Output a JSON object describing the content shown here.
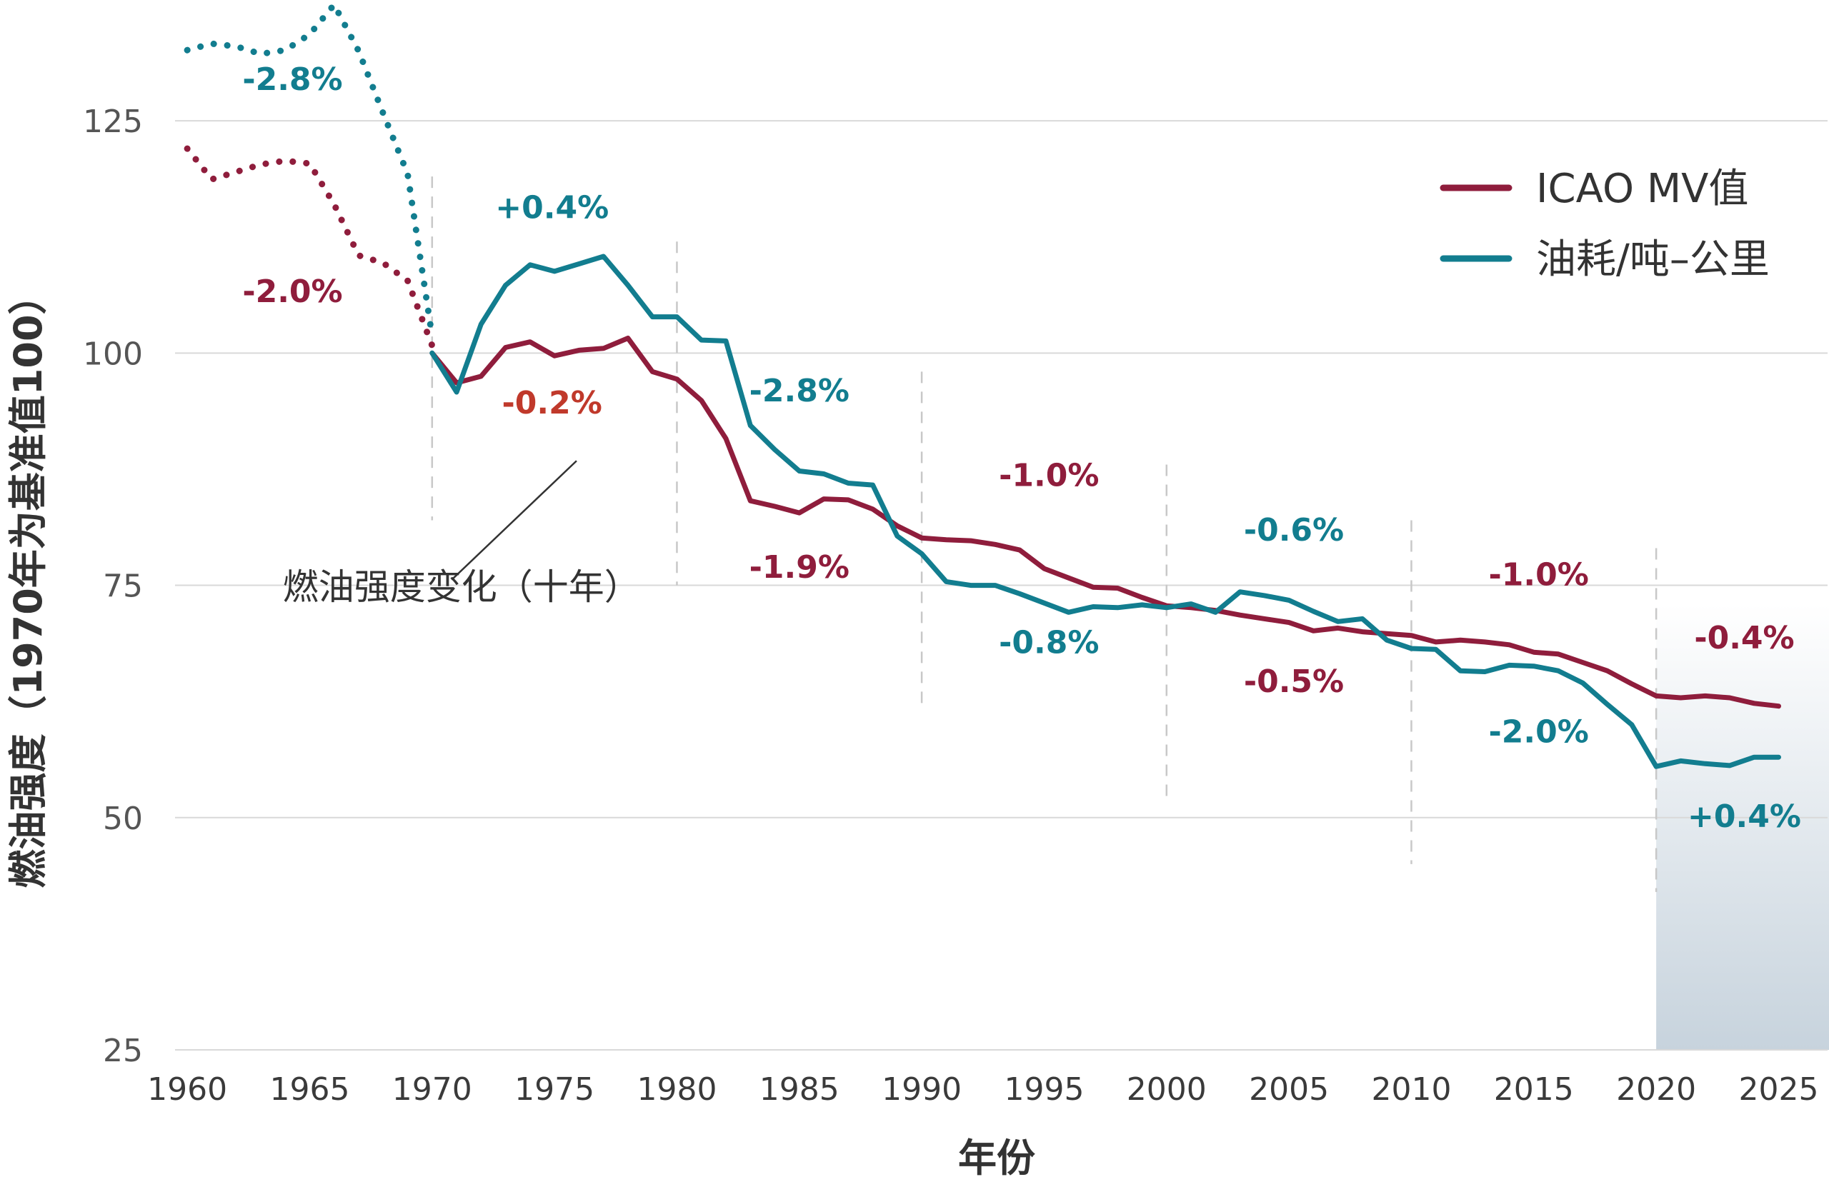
{
  "colors": {
    "mv": "#8f1d3c",
    "fuel": "#127d8f",
    "red_label": "#c0392b",
    "grid": "#d9d9d9",
    "divider": "#c8c8c8",
    "shade_top": "#ffffff",
    "shade_bottom": "#c7d3dd"
  },
  "chart_data": {
    "type": "line",
    "title": "",
    "xlabel": "年份",
    "ylabel": "燃油强度（1970年为基准值100）",
    "xlim": [
      1959.5,
      2027
    ],
    "ylim": [
      25,
      138
    ],
    "x_ticks": [
      "1960",
      "1965",
      "1970",
      "1975",
      "1980",
      "1985",
      "1990",
      "1995",
      "2000",
      "2005",
      "2010",
      "2015",
      "2020",
      "2025"
    ],
    "y_ticks": [
      "25",
      "50",
      "75",
      "100",
      "125"
    ],
    "grid": "horizontal",
    "legend_position": "top-right",
    "decade_dividers": [
      1970,
      1980,
      1990,
      2000,
      2010,
      2020
    ],
    "projection_shade": [
      2020,
      2027
    ],
    "series": [
      {
        "name": "ICAO MV值",
        "dotted": {
          "x": [
            1960,
            1961,
            1962,
            1963,
            1964,
            1965,
            1966,
            1967,
            1968,
            1969,
            1970
          ],
          "y": [
            122,
            118.7,
            119.5,
            120.3,
            120.7,
            120.4,
            116,
            110.5,
            109.7,
            107.8,
            100.8
          ]
        },
        "solid": {
          "x": [
            1970,
            1971,
            1972,
            1973,
            1974,
            1975,
            1976,
            1977,
            1978,
            1979,
            1980,
            1981,
            1982,
            1983,
            1984,
            1985,
            1986,
            1987,
            1988,
            1989,
            1990,
            1991,
            1992,
            1993,
            1994,
            1995,
            1996,
            1997,
            1998,
            1999,
            2000,
            2001,
            2002,
            2003,
            2004,
            2005,
            2006,
            2007,
            2008,
            2009,
            2010,
            2011,
            2012,
            2013,
            2014,
            2015,
            2016,
            2017,
            2018,
            2019,
            2020,
            2021,
            2022,
            2023,
            2024,
            2025
          ],
          "y": [
            100,
            96.8,
            97.5,
            100.6,
            101.2,
            99.7,
            100.3,
            100.5,
            101.6,
            98,
            97.2,
            94.9,
            90.8,
            84.1,
            83.5,
            82.8,
            84.3,
            84.2,
            83.2,
            81.4,
            80.1,
            79.9,
            79.8,
            79.4,
            78.8,
            76.8,
            75.8,
            74.8,
            74.7,
            73.7,
            72.8,
            72.6,
            72.3,
            71.8,
            71.4,
            71,
            70.1,
            70.4,
            70,
            69.8,
            69.6,
            68.9,
            69.1,
            68.9,
            68.6,
            67.8,
            67.6,
            66.7,
            65.8,
            64.4,
            63.1,
            62.9,
            63.1,
            62.9,
            62.3,
            62
          ]
        }
      },
      {
        "name": "油耗/吨–公里",
        "dotted": {
          "x": [
            1960,
            1961,
            1962,
            1963,
            1964,
            1965,
            1966,
            1967,
            1968,
            1969,
            1970
          ],
          "y": [
            132.6,
            133.3,
            133,
            132.2,
            132.6,
            134.3,
            137.5,
            132.5,
            125.8,
            119.3,
            101.8
          ]
        },
        "solid": {
          "x": [
            1970,
            1971,
            1972,
            1973,
            1974,
            1975,
            1976,
            1977,
            1978,
            1979,
            1980,
            1981,
            1982,
            1983,
            1984,
            1985,
            1986,
            1987,
            1988,
            1989,
            1990,
            1991,
            1992,
            1993,
            1994,
            1995,
            1996,
            1997,
            1998,
            1999,
            2000,
            2001,
            2002,
            2003,
            2004,
            2005,
            2006,
            2007,
            2008,
            2009,
            2010,
            2011,
            2012,
            2013,
            2014,
            2015,
            2016,
            2017,
            2018,
            2019,
            2020,
            2021,
            2022,
            2023,
            2024,
            2025
          ],
          "y": [
            100,
            95.8,
            103.1,
            107.3,
            109.5,
            108.8,
            109.6,
            110.4,
            107.3,
            103.9,
            103.9,
            101.4,
            101.3,
            92.2,
            89.6,
            87.3,
            87,
            86,
            85.8,
            80.3,
            78.4,
            75.4,
            75,
            75,
            74.1,
            73.1,
            72.1,
            72.7,
            72.6,
            72.9,
            72.6,
            73,
            72.1,
            74.3,
            73.9,
            73.4,
            72.2,
            71.1,
            71.4,
            69.1,
            68.2,
            68.1,
            65.8,
            65.7,
            66.4,
            66.3,
            65.8,
            64.5,
            62.2,
            60,
            55.5,
            56.1,
            55.8,
            55.6,
            56.5,
            56.5
          ]
        }
      }
    ],
    "decade_changes": [
      {
        "text": "-2.8%",
        "series": "fuel",
        "x": 1964.3,
        "y": 128.3
      },
      {
        "text": "-2.0%",
        "series": "mv",
        "x": 1964.3,
        "y": 105.5
      },
      {
        "text": "+0.4%",
        "series": "fuel",
        "x": 1974.9,
        "y": 114.5
      },
      {
        "text": "-0.2%",
        "series": "red",
        "x": 1974.9,
        "y": 93.5
      },
      {
        "text": "-2.8%",
        "series": "fuel",
        "x": 1985,
        "y": 94.8
      },
      {
        "text": "-1.9%",
        "series": "mv",
        "x": 1985,
        "y": 75.8
      },
      {
        "text": "-1.0%",
        "series": "mv",
        "x": 1995.2,
        "y": 85.7
      },
      {
        "text": "-0.8%",
        "series": "fuel",
        "x": 1995.2,
        "y": 67.7
      },
      {
        "text": "-0.6%",
        "series": "fuel",
        "x": 2005.2,
        "y": 79.8
      },
      {
        "text": "-0.5%",
        "series": "mv",
        "x": 2005.2,
        "y": 63.5
      },
      {
        "text": "-1.0%",
        "series": "mv",
        "x": 2015.2,
        "y": 75
      },
      {
        "text": "-2.0%",
        "series": "fuel",
        "x": 2015.2,
        "y": 58.1
      },
      {
        "text": "-0.4%",
        "series": "mv",
        "x": 2023.6,
        "y": 68.2
      },
      {
        "text": "+0.4%",
        "series": "fuel",
        "x": 2023.6,
        "y": 49
      }
    ],
    "annotation": {
      "text": "燃油强度变化（十年）",
      "x": 1963.9,
      "y": 73.5,
      "leader_from": [
        1970.8,
        75.6
      ],
      "leader_to": [
        1975.9,
        88.4
      ]
    }
  }
}
